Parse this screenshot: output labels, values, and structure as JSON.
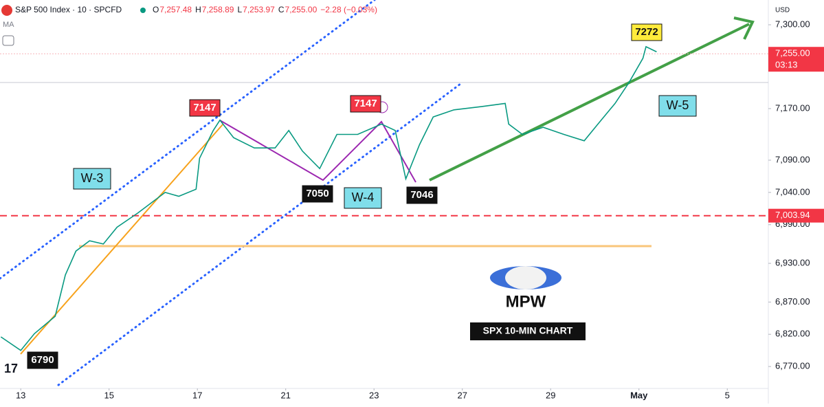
{
  "chart_data": {
    "type": "line",
    "title": "S&P 500 Index · 10 · SPCFD",
    "indicator": "MA",
    "ohlc": [
      {
        "key": "O",
        "value": 7257.48,
        "label": "7,257.48"
      },
      {
        "key": "H",
        "value": 7258.89,
        "label": "7,258.89"
      },
      {
        "key": "L",
        "value": 7253.97,
        "label": "7,253.97"
      },
      {
        "key": "C",
        "value": 7255.0,
        "label": "7,255.00"
      }
    ],
    "change": {
      "value": -2.28,
      "label": "−2.28 (−0.03%)"
    },
    "currency": "USD",
    "x": [
      -0.45,
      0,
      0.31,
      0.78,
      1.01,
      1.25,
      1.56,
      1.87,
      2.18,
      2.65,
      2.96,
      3.27,
      3.58,
      3.97,
      4.05,
      4.36,
      4.51,
      4.82,
      5.29,
      5.76,
      6.07,
      6.38,
      6.77,
      7.16,
      7.63,
      8.17,
      8.48,
      8.72,
      9.03,
      9.34,
      9.81,
      10.43,
      10.97,
      11.05,
      11.36,
      11.83,
      12.3,
      12.76,
      13.07,
      13.46,
      13.77,
      14.09,
      14.16,
      14.4
    ],
    "series": [
      {
        "name": "SPX",
        "color": "#089981",
        "values": [
          6816,
          6795,
          6821,
          6848,
          6912,
          6949,
          6965,
          6960,
          6986,
          7008,
          7024,
          7040,
          7034,
          7045,
          7093,
          7136,
          7152,
          7125,
          7109,
          7109,
          7136,
          7104,
          7077,
          7130,
          7130,
          7146,
          7136,
          7061,
          7114,
          7157,
          7168,
          7173,
          7178,
          7146,
          7130,
          7141,
          7130,
          7120,
          7146,
          7178,
          7210,
          7248,
          7266,
          7258
        ]
      }
    ],
    "xlim": [
      -0.47,
      16.93
    ],
    "xticks": [
      {
        "value": 0,
        "label": "13"
      },
      {
        "value": 2,
        "label": "15"
      },
      {
        "value": 4,
        "label": "17"
      },
      {
        "value": 6,
        "label": "21"
      },
      {
        "value": 8,
        "label": "23"
      },
      {
        "value": 10,
        "label": "27"
      },
      {
        "value": 12,
        "label": "29"
      },
      {
        "value": 14,
        "label": "May"
      },
      {
        "value": 16,
        "label": "5"
      }
    ],
    "ylim": [
      6736,
      7338.4
    ],
    "yticks": [
      {
        "value": 7300,
        "label": "7,300.00"
      },
      {
        "value": 7170,
        "label": "7,170.00"
      },
      {
        "value": 7090,
        "label": "7,090.00"
      },
      {
        "value": 7040,
        "label": "7,040.00"
      },
      {
        "value": 6990,
        "label": "6,990.00"
      },
      {
        "value": 6930,
        "label": "6,930.00"
      },
      {
        "value": 6870,
        "label": "6,870.00"
      },
      {
        "value": 6820,
        "label": "6,820.00"
      },
      {
        "value": 6770,
        "label": "6,770.00"
      }
    ],
    "last_price": {
      "value": 7255,
      "label": "7,255.00",
      "countdown": "03:13"
    },
    "price_line": {
      "value": 7003.94,
      "label": "7,003.94"
    },
    "wave_labels": [
      7147,
      7050,
      7147,
      7046,
      6790,
      7272
    ],
    "wave_names": [
      "W-3",
      "W-4",
      "W-5"
    ],
    "logo": "MPW",
    "caption": "SPX 10-MIN CHART"
  }
}
